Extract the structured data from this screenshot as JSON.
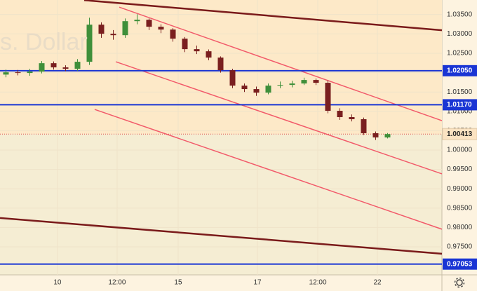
{
  "chart_data": {
    "type": "candlestick",
    "watermark": "s. Dollar",
    "up_color": "#3f8f3a",
    "down_color": "#7a1f1f",
    "open": [
      1.0195,
      1.02009,
      1.01991,
      1.02027,
      1.02244,
      1.02136,
      1.021,
      1.02281,
      1.0324,
      1.03005,
      1.02968,
      1.0333,
      1.03367,
      1.03186,
      1.03113,
      1.02878,
      1.02607,
      1.02552,
      1.02389,
      1.02063,
      1.01665,
      1.01575,
      1.01484,
      1.01665,
      1.01683,
      1.0172,
      1.0181,
      1.01738,
      1.01014,
      1.00851,
      1.00797,
      1.00435,
      1.00326
    ],
    "high": [
      1.0208,
      1.0207,
      1.021,
      1.023,
      1.0229,
      1.0219,
      1.0235,
      1.0342,
      1.033,
      1.031,
      1.034,
      1.0351,
      1.034,
      1.0325,
      1.0315,
      1.0292,
      1.027,
      1.026,
      1.0242,
      1.021,
      1.0172,
      1.0164,
      1.0172,
      1.0177,
      1.0179,
      1.0187,
      1.0185,
      1.018,
      1.0108,
      1.0092,
      1.0084,
      1.0048,
      1.0044
    ],
    "low": [
      1.0188,
      1.0193,
      1.0192,
      1.0198,
      1.0208,
      1.0204,
      1.0205,
      1.022,
      1.029,
      1.0285,
      1.029,
      1.0325,
      1.031,
      1.0302,
      1.028,
      1.0253,
      1.0248,
      1.0232,
      1.02,
      1.016,
      1.015,
      1.014,
      1.0144,
      1.016,
      1.0162,
      1.0168,
      1.0168,
      1.0095,
      1.0078,
      1.0074,
      1.0039,
      1.0026,
      1.003
    ],
    "close": [
      1.02009,
      1.01991,
      1.02027,
      1.02244,
      1.02136,
      1.021,
      1.02281,
      1.0324,
      1.03005,
      1.02968,
      1.0333,
      1.03367,
      1.03186,
      1.03113,
      1.02878,
      1.02607,
      1.02552,
      1.02389,
      1.02063,
      1.01665,
      1.01575,
      1.01484,
      1.01665,
      1.01683,
      1.0172,
      1.0181,
      1.01738,
      1.01014,
      1.00851,
      1.00797,
      1.00435,
      1.00326,
      1.00413
    ],
    "xlim": [
      -0.5,
      36.56
    ],
    "xticks": [
      {
        "value": 4.32,
        "label": "10"
      },
      {
        "value": 9.32,
        "label": "12:00"
      },
      {
        "value": 14.44,
        "label": "15"
      },
      {
        "value": 21.09,
        "label": "17"
      },
      {
        "value": 26.15,
        "label": "12:00"
      },
      {
        "value": 31.15,
        "label": "22"
      }
    ],
    "ylim": [
      0.96775,
      1.03877
    ],
    "yticks": [
      {
        "value": 1.035,
        "label": "1.03500"
      },
      {
        "value": 1.03,
        "label": "1.03000"
      },
      {
        "value": 1.025,
        "label": "1.02500"
      },
      {
        "value": 1.02,
        "label": "1.02000"
      },
      {
        "value": 1.015,
        "label": "1.01500"
      },
      {
        "value": 1.01,
        "label": "1.01000"
      },
      {
        "value": 1.005,
        "label": "1.00500"
      },
      {
        "value": 1.0,
        "label": "1.00000"
      },
      {
        "value": 0.995,
        "label": "0.99500"
      },
      {
        "value": 0.99,
        "label": "0.99000"
      },
      {
        "value": 0.985,
        "label": "0.98500"
      },
      {
        "value": 0.98,
        "label": "0.98000"
      },
      {
        "value": 0.975,
        "label": "0.97500"
      }
    ],
    "levels": [
      {
        "value": 1.0205,
        "label": "1.02050",
        "color": "#1a35d4"
      },
      {
        "value": 1.0117,
        "label": "1.01170",
        "color": "#1a35d4"
      },
      {
        "value": 1.00413,
        "label": "1.00413",
        "color": "#e05050"
      },
      {
        "value": 0.97053,
        "label": "0.97053",
        "color": "#1a35d4"
      }
    ],
    "trendlines": [
      {
        "x": [
          6.56,
          36.56
        ],
        "y": [
          1.03873,
          1.03095
        ],
        "color": "#7a1a1a"
      },
      {
        "x": [
          -0.5,
          36.56
        ],
        "y": [
          0.98244,
          0.97321
        ],
        "color": "#7a1a1a"
      },
      {
        "x": [
          9.5,
          36.56
        ],
        "y": [
          1.03692,
          1.0076
        ],
        "color": "#f25a6a"
      },
      {
        "x": [
          9.21,
          36.56
        ],
        "y": [
          1.02281,
          0.99385
        ],
        "color": "#f25a6a"
      },
      {
        "x": [
          7.44,
          36.56
        ],
        "y": [
          1.0105,
          0.97955
        ],
        "color": "#f25a6a"
      }
    ]
  }
}
